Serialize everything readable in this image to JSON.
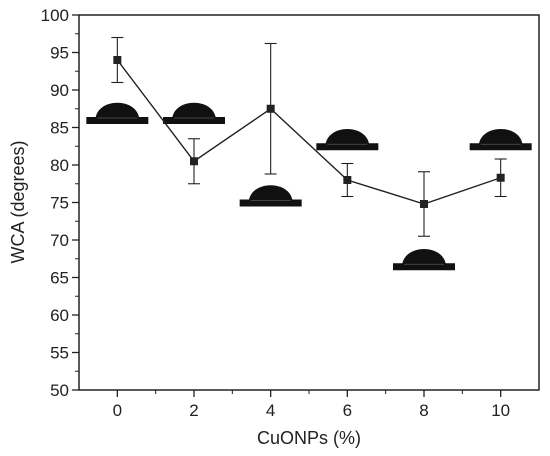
{
  "chart_data": {
    "type": "line",
    "xlabel": "CuONPs (%)",
    "ylabel": "WCA (degrees)",
    "xlim": [
      -1,
      11
    ],
    "ylim": [
      50,
      100
    ],
    "x_ticks": [
      0,
      2,
      4,
      6,
      8,
      10
    ],
    "y_ticks": [
      50,
      55,
      60,
      65,
      70,
      75,
      80,
      85,
      90,
      95,
      100
    ],
    "grid": false,
    "legend": "none",
    "series": [
      {
        "x": [
          0,
          2,
          4,
          6,
          8,
          10
        ],
        "y": [
          94,
          80.5,
          87.5,
          78,
          74.8,
          78.3
        ],
        "y_error": [
          3,
          3,
          8.7,
          2.2,
          4.3,
          2.5
        ],
        "marker": "square",
        "color": "#222222"
      }
    ],
    "droplet_insets": [
      {
        "x": 0,
        "y": 86
      },
      {
        "x": 2,
        "y": 86
      },
      {
        "x": 4,
        "y": 75
      },
      {
        "x": 6,
        "y": 82.5
      },
      {
        "x": 8,
        "y": 66.5
      },
      {
        "x": 10,
        "y": 82.5
      }
    ],
    "droplet_color": "#111111"
  }
}
